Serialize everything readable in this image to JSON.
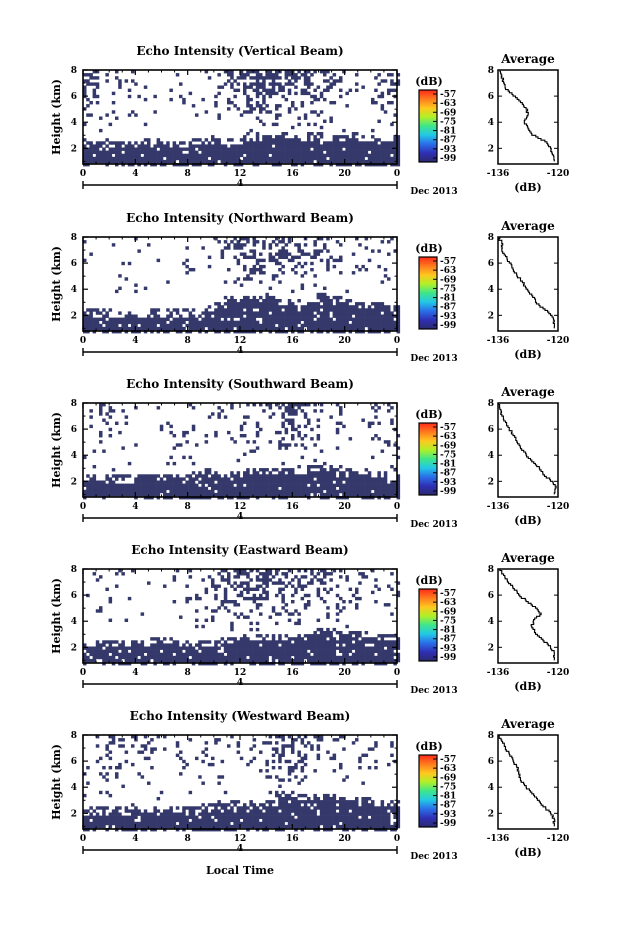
{
  "chart_data": [
    {
      "type": "heatmap",
      "title": "Echo Intensity (Vertical Beam)",
      "ylabel": "Height (km)",
      "x_ticks": [
        "0",
        "4",
        "8",
        "12",
        "16",
        "20",
        "0"
      ],
      "y_ticks": [
        "2",
        "4",
        "6",
        "8"
      ],
      "date_marker": "4",
      "date_label": "Dec 2013",
      "xlim": [
        0,
        24
      ],
      "ylim": [
        0.8,
        8
      ],
      "colorbar": {
        "unit": "(dB)",
        "ticks": [
          "-57",
          "-63",
          "-69",
          "-75",
          "-81",
          "-87",
          "-93",
          "-99"
        ]
      },
      "low_layer_top_km": [
        2.6,
        2.5,
        2.5,
        2.5,
        2.6,
        2.6,
        2.5,
        2.5,
        2.6,
        2.7,
        2.6,
        2.7,
        2.9,
        3.0,
        3.0,
        3.1,
        3.0,
        3.1,
        3.0,
        3.0,
        3.1,
        3.0,
        3.0,
        3.0
      ],
      "upper_coverage": [
        0.3,
        0.1,
        0.05,
        0.12,
        0.05,
        0.03,
        0.08,
        0.05,
        0.05,
        0.04,
        0.08,
        0.25,
        0.45,
        0.55,
        0.55,
        0.45,
        0.4,
        0.35,
        0.25,
        0.2,
        0.15,
        0.1,
        0.2,
        0.25
      ],
      "average_profile": {
        "title": "Average",
        "xlabel": "(dB)",
        "x_ticks": [
          "-136",
          "-120"
        ],
        "y_ticks": [
          "2",
          "4",
          "6",
          "8"
        ],
        "xlim": [
          -136,
          -120
        ],
        "height_km": [
          1.0,
          1.5,
          2.0,
          2.5,
          3.0,
          3.5,
          4.0,
          4.5,
          5.0,
          5.5,
          6.0,
          6.5,
          7.0,
          7.5,
          8.0
        ],
        "db": [
          -121,
          -121.5,
          -122,
          -123.5,
          -127,
          -128,
          -129,
          -128,
          -128.5,
          -130,
          -132,
          -134,
          -134.5,
          -135,
          -135.5
        ]
      }
    },
    {
      "type": "heatmap",
      "title": "Echo Intensity (Northward Beam)",
      "ylabel": "Height (km)",
      "x_ticks": [
        "0",
        "4",
        "8",
        "12",
        "16",
        "20",
        "0"
      ],
      "y_ticks": [
        "2",
        "4",
        "6",
        "8"
      ],
      "date_marker": "4",
      "date_label": "Dec 2013",
      "xlim": [
        0,
        24
      ],
      "ylim": [
        0.8,
        8
      ],
      "colorbar": {
        "unit": "(dB)",
        "ticks": [
          "-57",
          "-63",
          "-69",
          "-75",
          "-81",
          "-87",
          "-93",
          "-99"
        ]
      },
      "low_layer_top_km": [
        2.3,
        2.3,
        2.2,
        2.2,
        2.2,
        2.3,
        2.3,
        2.3,
        2.4,
        2.6,
        2.8,
        3.3,
        3.4,
        3.3,
        3.3,
        3.2,
        3.2,
        3.5,
        3.6,
        3.4,
        3.2,
        3.0,
        2.8,
        2.6
      ],
      "upper_coverage": [
        0.04,
        0.03,
        0.05,
        0.03,
        0.02,
        0.03,
        0.04,
        0.04,
        0.03,
        0.05,
        0.1,
        0.3,
        0.4,
        0.35,
        0.4,
        0.35,
        0.25,
        0.2,
        0.2,
        0.15,
        0.1,
        0.1,
        0.08,
        0.05
      ],
      "average_profile": {
        "title": "Average",
        "xlabel": "(dB)",
        "x_ticks": [
          "-136",
          "-120"
        ],
        "y_ticks": [
          "2",
          "4",
          "6",
          "8"
        ],
        "xlim": [
          -136,
          -120
        ],
        "height_km": [
          1.0,
          1.5,
          2.0,
          2.5,
          3.0,
          3.5,
          4.0,
          4.5,
          5.0,
          5.5,
          6.0,
          6.5,
          7.0,
          7.5,
          8.0
        ],
        "db": [
          -121,
          -121,
          -122,
          -124,
          -126,
          -127,
          -128.5,
          -129.5,
          -131,
          -132,
          -133,
          -134,
          -135,
          -135,
          -136
        ]
      }
    },
    {
      "type": "heatmap",
      "title": "Echo Intensity (Southward Beam)",
      "ylabel": "Height (km)",
      "x_ticks": [
        "0",
        "4",
        "8",
        "12",
        "16",
        "20",
        "0"
      ],
      "y_ticks": [
        "2",
        "4",
        "6",
        "8"
      ],
      "date_marker": "4",
      "date_label": "Dec 2013",
      "xlim": [
        0,
        24
      ],
      "ylim": [
        0.8,
        8
      ],
      "colorbar": {
        "unit": "(dB)",
        "ticks": [
          "-57",
          "-63",
          "-69",
          "-75",
          "-81",
          "-87",
          "-93",
          "-99"
        ]
      },
      "low_layer_top_km": [
        2.4,
        2.4,
        2.3,
        2.3,
        2.4,
        2.4,
        2.4,
        2.5,
        2.6,
        2.8,
        2.7,
        2.7,
        2.8,
        3.0,
        3.0,
        3.0,
        2.9,
        3.1,
        3.3,
        3.2,
        3.0,
        2.9,
        2.6,
        2.4
      ],
      "upper_coverage": [
        0.05,
        0.15,
        0.04,
        0.05,
        0.08,
        0.05,
        0.15,
        0.08,
        0.05,
        0.05,
        0.15,
        0.1,
        0.12,
        0.1,
        0.2,
        0.4,
        0.35,
        0.15,
        0.1,
        0.08,
        0.05,
        0.05,
        0.1,
        0.15
      ],
      "average_profile": {
        "title": "Average",
        "xlabel": "(dB)",
        "x_ticks": [
          "-136",
          "-120"
        ],
        "y_ticks": [
          "2",
          "4",
          "6",
          "8"
        ],
        "xlim": [
          -136,
          -120
        ],
        "height_km": [
          1.0,
          1.5,
          2.0,
          2.5,
          3.0,
          3.5,
          4.0,
          4.5,
          5.0,
          5.5,
          6.0,
          6.5,
          7.0,
          7.5,
          8.0
        ],
        "db": [
          -121,
          -120.5,
          -122,
          -124,
          -125,
          -127,
          -128.5,
          -130,
          -131,
          -132,
          -133,
          -134,
          -135,
          -135.5,
          -136
        ]
      }
    },
    {
      "type": "heatmap",
      "title": "Echo Intensity (Eastward Beam)",
      "ylabel": "Height (km)",
      "x_ticks": [
        "0",
        "4",
        "8",
        "12",
        "16",
        "20",
        "0"
      ],
      "y_ticks": [
        "2",
        "4",
        "6",
        "8"
      ],
      "date_marker": "4",
      "date_label": "Dec 2013",
      "xlim": [
        0,
        24
      ],
      "ylim": [
        0.8,
        8
      ],
      "colorbar": {
        "unit": "(dB)",
        "ticks": [
          "-57",
          "-63",
          "-69",
          "-75",
          "-81",
          "-87",
          "-93",
          "-99"
        ]
      },
      "low_layer_top_km": [
        2.4,
        2.4,
        2.4,
        2.5,
        2.5,
        2.6,
        2.6,
        2.5,
        2.4,
        2.5,
        2.6,
        2.6,
        2.8,
        3.0,
        3.0,
        2.9,
        3.0,
        3.3,
        3.4,
        3.3,
        3.2,
        3.1,
        3.0,
        2.9
      ],
      "upper_coverage": [
        0.05,
        0.08,
        0.04,
        0.05,
        0.05,
        0.04,
        0.03,
        0.05,
        0.15,
        0.2,
        0.25,
        0.35,
        0.4,
        0.4,
        0.35,
        0.3,
        0.3,
        0.25,
        0.2,
        0.2,
        0.15,
        0.15,
        0.1,
        0.08
      ],
      "average_profile": {
        "title": "Average",
        "xlabel": "(dB)",
        "x_ticks": [
          "-136",
          "-120"
        ],
        "y_ticks": [
          "2",
          "4",
          "6",
          "8"
        ],
        "xlim": [
          -136,
          -120
        ],
        "height_km": [
          1.0,
          1.5,
          2.0,
          2.5,
          3.0,
          3.5,
          4.0,
          4.5,
          5.0,
          5.5,
          6.0,
          6.5,
          7.0,
          7.5,
          8.0
        ],
        "db": [
          -121,
          -121,
          -122,
          -124,
          -126,
          -127,
          -126.5,
          -124.5,
          -126,
          -128.5,
          -130.5,
          -132,
          -133.5,
          -134.5,
          -135.5
        ]
      }
    },
    {
      "type": "heatmap",
      "title": "Echo Intensity (Westward Beam)",
      "ylabel": "Height (km)",
      "xlabel": "Local Time",
      "x_ticks": [
        "0",
        "4",
        "8",
        "12",
        "16",
        "20",
        "0"
      ],
      "y_ticks": [
        "2",
        "4",
        "6",
        "8"
      ],
      "date_marker": "4",
      "date_label": "Dec 2013",
      "xlim": [
        0,
        24
      ],
      "ylim": [
        0.8,
        8
      ],
      "colorbar": {
        "unit": "(dB)",
        "ticks": [
          "-57",
          "-63",
          "-69",
          "-75",
          "-81",
          "-87",
          "-93",
          "-99"
        ]
      },
      "low_layer_top_km": [
        2.3,
        2.3,
        2.3,
        2.3,
        2.4,
        2.4,
        2.4,
        2.5,
        2.5,
        2.6,
        2.7,
        2.8,
        2.9,
        3.0,
        3.5,
        3.6,
        3.4,
        3.3,
        3.4,
        3.3,
        3.2,
        3.1,
        3.0,
        2.9
      ],
      "upper_coverage": [
        0.1,
        0.12,
        0.1,
        0.08,
        0.12,
        0.08,
        0.05,
        0.1,
        0.1,
        0.08,
        0.1,
        0.1,
        0.08,
        0.15,
        0.4,
        0.45,
        0.35,
        0.2,
        0.15,
        0.15,
        0.1,
        0.1,
        0.08,
        0.1
      ],
      "average_profile": {
        "title": "Average",
        "xlabel": "(dB)",
        "x_ticks": [
          "-136",
          "-120"
        ],
        "y_ticks": [
          "2",
          "4",
          "6",
          "8"
        ],
        "xlim": [
          -136,
          -120
        ],
        "height_km": [
          1.0,
          1.5,
          2.0,
          2.5,
          3.0,
          3.5,
          4.0,
          4.5,
          5.0,
          5.5,
          6.0,
          6.5,
          7.0,
          7.5,
          8.0
        ],
        "db": [
          -121,
          -121,
          -122,
          -124,
          -125.5,
          -127,
          -128.5,
          -130,
          -130.5,
          -131,
          -132,
          -133,
          -134,
          -135,
          -136
        ]
      }
    }
  ],
  "colors": {
    "echo_fill": "#34386a",
    "colorbar_stops": [
      "#ff2a1a",
      "#ff7a1e",
      "#ffc81e",
      "#b0f028",
      "#3ee68a",
      "#22c8e6",
      "#2a6ee8",
      "#2f2fb4",
      "#2a2a6e"
    ]
  }
}
